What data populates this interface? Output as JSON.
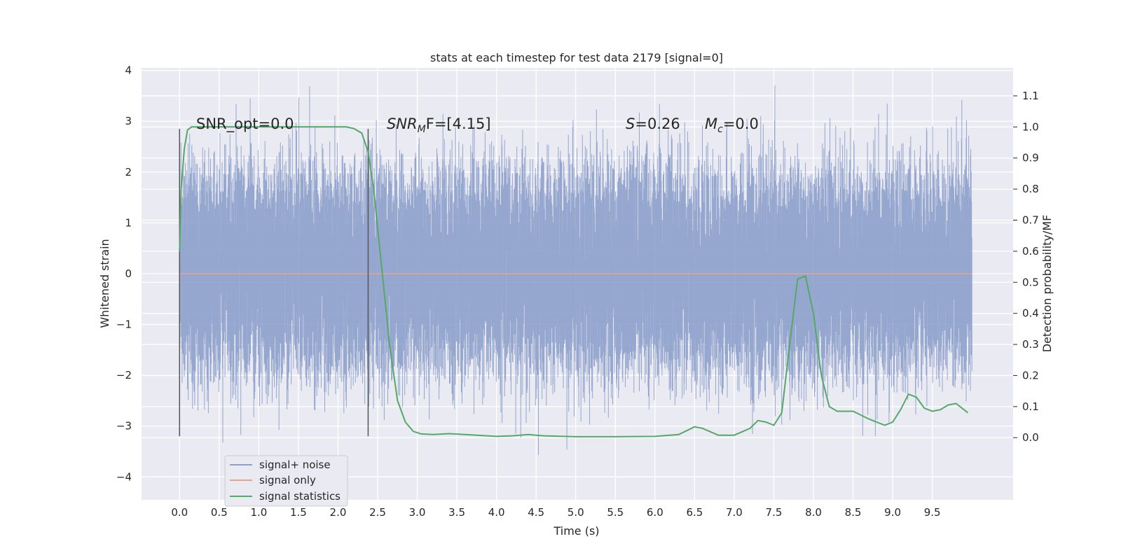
{
  "chart_data": {
    "type": "line",
    "title": "stats at each timestep for test data 2179 [signal=0]",
    "xlabel": "Time (s)",
    "ylabel": "Whitened strain",
    "y2label": "Detection probability/MF",
    "xlim": [
      -0.48,
      10.52
    ],
    "ylim": [
      -4.45,
      4.05
    ],
    "y2lim": [
      -0.2,
      1.19
    ],
    "xticks": [
      "0.0",
      "0.5",
      "1.0",
      "1.5",
      "2.0",
      "2.5",
      "3.0",
      "3.5",
      "4.0",
      "4.5",
      "5.0",
      "5.5",
      "6.0",
      "6.5",
      "7.0",
      "7.5",
      "8.0",
      "8.5",
      "9.0",
      "9.5"
    ],
    "yticks": [
      "4",
      "3",
      "2",
      "1",
      "0",
      "−1",
      "−2",
      "−3",
      "−4"
    ],
    "y2ticks": [
      "1.1",
      "1.0",
      "0.9",
      "0.8",
      "0.7",
      "0.6",
      "0.5",
      "0.4",
      "0.3",
      "0.2",
      "0.1",
      "0.0"
    ],
    "grid": true,
    "legend_position": "lower-left",
    "annotations": {
      "snr_opt": "SNR_opt=0.0",
      "snr_mf_var": "SNR",
      "snr_mf_sub": "M",
      "snr_mf_rest": "F=[4.15]",
      "s_var": "S",
      "s_rest": "=0.26",
      "mc_var": "M",
      "mc_sub": "c",
      "mc_rest": "=0.0"
    },
    "vertical_markers_x": [
      0.0,
      2.38
    ],
    "series": [
      {
        "name": "signal+ noise",
        "color": "#8da0cb",
        "x_range": [
          0.0,
          10.0
        ],
        "band_typical": [
          -1.5,
          1.6
        ],
        "max_abs_peaks": 3.7
      },
      {
        "name": "signal only",
        "color": "#e5a48a",
        "x": [
          0.0,
          10.0
        ],
        "y": [
          0.0,
          0.0
        ]
      },
      {
        "name": "signal statistics",
        "color": "#55a868",
        "axis": "right",
        "x": [
          0.0,
          0.02,
          0.06,
          0.1,
          0.15,
          0.25,
          0.5,
          1.0,
          1.5,
          2.0,
          2.1,
          2.2,
          2.3,
          2.38,
          2.45,
          2.55,
          2.65,
          2.75,
          2.85,
          2.95,
          3.05,
          3.2,
          3.4,
          3.6,
          4.0,
          4.2,
          4.4,
          4.6,
          5.0,
          5.5,
          6.0,
          6.3,
          6.5,
          6.6,
          6.8,
          7.0,
          7.2,
          7.3,
          7.4,
          7.5,
          7.6,
          7.7,
          7.8,
          7.9,
          8.0,
          8.1,
          8.2,
          8.3,
          8.5,
          8.7,
          8.9,
          9.0,
          9.1,
          9.2,
          9.3,
          9.4,
          9.5,
          9.6,
          9.7,
          9.8,
          9.95
        ],
        "y": [
          0.6,
          0.8,
          0.93,
          0.99,
          1.0,
          1.0,
          1.0,
          1.0,
          1.0,
          1.0,
          1.0,
          0.995,
          0.98,
          0.92,
          0.8,
          0.55,
          0.3,
          0.12,
          0.05,
          0.02,
          0.012,
          0.01,
          0.013,
          0.01,
          0.004,
          0.006,
          0.01,
          0.006,
          0.003,
          0.003,
          0.004,
          0.01,
          0.035,
          0.03,
          0.008,
          0.008,
          0.03,
          0.055,
          0.05,
          0.04,
          0.08,
          0.3,
          0.51,
          0.52,
          0.4,
          0.2,
          0.1,
          0.085,
          0.085,
          0.06,
          0.04,
          0.05,
          0.09,
          0.14,
          0.13,
          0.095,
          0.085,
          0.09,
          0.105,
          0.11,
          0.08
        ]
      }
    ]
  }
}
